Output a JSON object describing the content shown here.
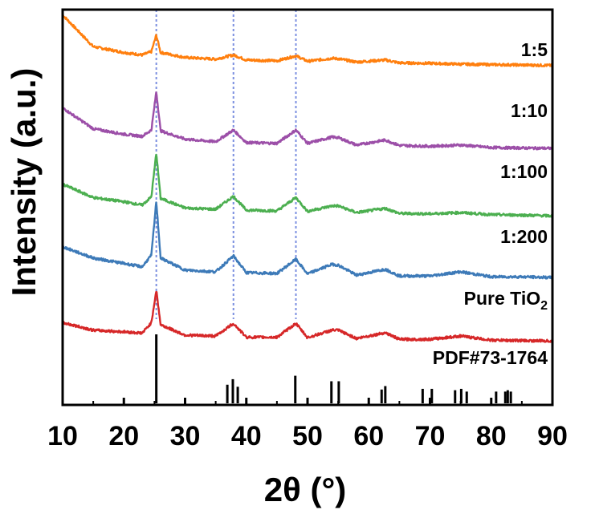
{
  "chart_data": {
    "type": "line",
    "title": "",
    "xlabel": "2θ (°)",
    "ylabel": "Intensity (a.u.)",
    "xlim": [
      10,
      90
    ],
    "xticks": [
      10,
      20,
      30,
      40,
      50,
      60,
      70,
      80,
      90
    ],
    "yticks_shown": false,
    "grid": false,
    "legend": "none",
    "reference_lines_x": [
      25.3,
      37.9,
      48.1
    ],
    "series": [
      {
        "label_text": "1:5",
        "color": "#ff7f0e",
        "points": [
          [
            10,
            7.18
          ],
          [
            15,
            6.42
          ],
          [
            20,
            6.28
          ],
          [
            23,
            6.22
          ],
          [
            24.5,
            6.3
          ],
          [
            25.3,
            6.7
          ],
          [
            26,
            6.28
          ],
          [
            30,
            6.16
          ],
          [
            35,
            6.12
          ],
          [
            37.9,
            6.22
          ],
          [
            40,
            6.1
          ],
          [
            45,
            6.08
          ],
          [
            48.1,
            6.2
          ],
          [
            50,
            6.07
          ],
          [
            54,
            6.14
          ],
          [
            55,
            6.13
          ],
          [
            58,
            6.05
          ],
          [
            62.7,
            6.1
          ],
          [
            65,
            6.03
          ],
          [
            70,
            6.02
          ],
          [
            75,
            6.0
          ],
          [
            80,
            5.99
          ],
          [
            85,
            5.98
          ],
          [
            90,
            5.97
          ]
        ]
      },
      {
        "label_text": "1:10",
        "color": "#9c4fa8",
        "points": [
          [
            10,
            4.95
          ],
          [
            15,
            4.45
          ],
          [
            20,
            4.32
          ],
          [
            23,
            4.27
          ],
          [
            24.5,
            4.42
          ],
          [
            25.3,
            5.35
          ],
          [
            26,
            4.4
          ],
          [
            30,
            4.2
          ],
          [
            35,
            4.14
          ],
          [
            37.9,
            4.42
          ],
          [
            40,
            4.12
          ],
          [
            45,
            4.1
          ],
          [
            48.1,
            4.42
          ],
          [
            50,
            4.1
          ],
          [
            54,
            4.25
          ],
          [
            55,
            4.24
          ],
          [
            58,
            4.06
          ],
          [
            62.7,
            4.18
          ],
          [
            65,
            4.05
          ],
          [
            70,
            4.03
          ],
          [
            75,
            4.06
          ],
          [
            80,
            4.0
          ],
          [
            85,
            3.99
          ],
          [
            90,
            3.98
          ]
        ]
      },
      {
        "label_text": "1:100",
        "color": "#4caf50",
        "points": [
          [
            10,
            3.12
          ],
          [
            15,
            2.8
          ],
          [
            20,
            2.7
          ],
          [
            23,
            2.62
          ],
          [
            24.5,
            2.82
          ],
          [
            25.3,
            3.88
          ],
          [
            26,
            2.78
          ],
          [
            30,
            2.55
          ],
          [
            35,
            2.52
          ],
          [
            37.9,
            2.83
          ],
          [
            40,
            2.5
          ],
          [
            45,
            2.48
          ],
          [
            48.1,
            2.8
          ],
          [
            50,
            2.47
          ],
          [
            54,
            2.6
          ],
          [
            55,
            2.6
          ],
          [
            58,
            2.44
          ],
          [
            62.7,
            2.54
          ],
          [
            65,
            2.42
          ],
          [
            70,
            2.41
          ],
          [
            75,
            2.44
          ],
          [
            80,
            2.39
          ],
          [
            85,
            2.38
          ],
          [
            90,
            2.36
          ]
        ]
      },
      {
        "label_text": "1:200",
        "color": "#3d7ab8",
        "points": [
          [
            10,
            1.62
          ],
          [
            15,
            1.35
          ],
          [
            20,
            1.22
          ],
          [
            23,
            1.14
          ],
          [
            24.5,
            1.42
          ],
          [
            25.3,
            2.72
          ],
          [
            26,
            1.35
          ],
          [
            30,
            1.06
          ],
          [
            35,
            1.02
          ],
          [
            37.9,
            1.4
          ],
          [
            40,
            1.0
          ],
          [
            45,
            0.98
          ],
          [
            48.1,
            1.32
          ],
          [
            50,
            0.97
          ],
          [
            54,
            1.2
          ],
          [
            55,
            1.18
          ],
          [
            58,
            0.94
          ],
          [
            62.7,
            1.08
          ],
          [
            65,
            0.92
          ],
          [
            70,
            0.92
          ],
          [
            75,
            1.02
          ],
          [
            80,
            0.9
          ],
          [
            85,
            0.9
          ],
          [
            90,
            0.88
          ]
        ]
      },
      {
        "label_text": "Pure TiO",
        "label_sub": "2",
        "color": "#d62728",
        "points": [
          [
            10,
            -0.2
          ],
          [
            15,
            -0.38
          ],
          [
            20,
            -0.42
          ],
          [
            23,
            -0.45
          ],
          [
            24.5,
            -0.2
          ],
          [
            25.3,
            0.58
          ],
          [
            26,
            -0.25
          ],
          [
            30,
            -0.5
          ],
          [
            35,
            -0.52
          ],
          [
            37.9,
            -0.22
          ],
          [
            40,
            -0.55
          ],
          [
            45,
            -0.55
          ],
          [
            48.1,
            -0.22
          ],
          [
            50,
            -0.56
          ],
          [
            54,
            -0.38
          ],
          [
            55,
            -0.38
          ],
          [
            58,
            -0.58
          ],
          [
            62.7,
            -0.44
          ],
          [
            65,
            -0.6
          ],
          [
            70,
            -0.6
          ],
          [
            75,
            -0.52
          ],
          [
            80,
            -0.62
          ],
          [
            85,
            -0.63
          ],
          [
            90,
            -0.64
          ]
        ]
      }
    ],
    "reference_pattern": {
      "label_text": "PDF#73-1764",
      "color": "#000000",
      "sticks": [
        [
          25.3,
          100
        ],
        [
          36.9,
          27
        ],
        [
          37.8,
          35
        ],
        [
          38.6,
          24
        ],
        [
          48.0,
          40
        ],
        [
          53.9,
          32
        ],
        [
          55.1,
          32
        ],
        [
          62.1,
          20
        ],
        [
          62.7,
          25
        ],
        [
          68.8,
          21
        ],
        [
          70.3,
          21
        ],
        [
          74.1,
          19
        ],
        [
          75.1,
          21
        ],
        [
          76.0,
          17
        ],
        [
          80.8,
          17
        ],
        [
          82.3,
          17
        ],
        [
          82.7,
          19
        ],
        [
          83.2,
          17
        ]
      ]
    }
  }
}
